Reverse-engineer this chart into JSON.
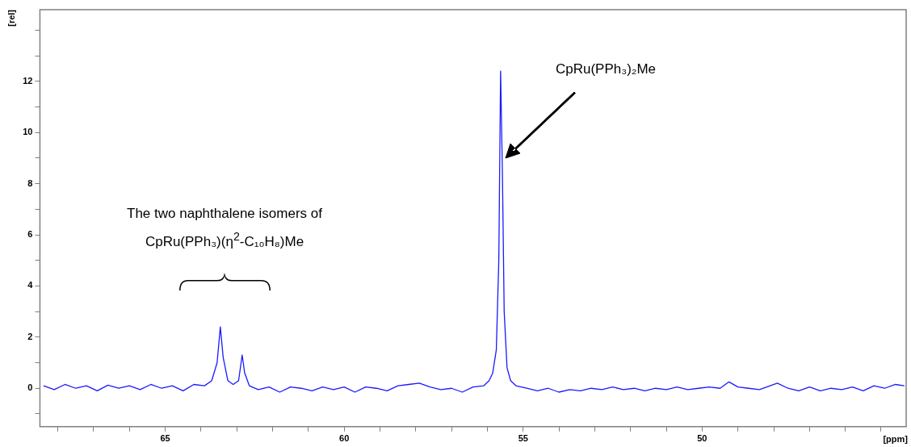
{
  "chart_data": {
    "type": "line",
    "xlabel": "[ppm]",
    "ylabel": "[rel]",
    "x": [
      68.4,
      68.1,
      67.8,
      67.5,
      67.2,
      66.9,
      66.6,
      66.3,
      66.0,
      65.7,
      65.4,
      65.1,
      64.8,
      64.5,
      64.2,
      63.9,
      63.7,
      63.55,
      63.46,
      63.38,
      63.25,
      63.1,
      62.95,
      62.85,
      62.78,
      62.65,
      62.4,
      62.1,
      61.8,
      61.5,
      61.2,
      60.9,
      60.6,
      60.3,
      60.0,
      59.7,
      59.4,
      59.1,
      58.8,
      58.5,
      58.2,
      57.9,
      57.6,
      57.3,
      57.0,
      56.7,
      56.4,
      56.1,
      55.95,
      55.85,
      55.75,
      55.68,
      55.63,
      55.58,
      55.53,
      55.45,
      55.35,
      55.2,
      54.9,
      54.6,
      54.3,
      54.0,
      53.7,
      53.4,
      53.1,
      52.8,
      52.5,
      52.2,
      51.9,
      51.6,
      51.3,
      51.0,
      50.7,
      50.4,
      50.1,
      49.8,
      49.5,
      49.25,
      49.0,
      48.7,
      48.4,
      48.1,
      47.9,
      47.6,
      47.3,
      47.0,
      46.7,
      46.4,
      46.1,
      45.8,
      45.5,
      45.2,
      44.9,
      44.6,
      44.35
    ],
    "series": [
      {
        "color": "#1a1aff",
        "values": [
          0.1,
          -0.05,
          0.15,
          0.0,
          0.1,
          -0.1,
          0.12,
          0.0,
          0.1,
          -0.05,
          0.15,
          0.0,
          0.1,
          -0.1,
          0.15,
          0.1,
          0.3,
          1.0,
          2.4,
          1.2,
          0.3,
          0.15,
          0.3,
          1.3,
          0.6,
          0.1,
          -0.05,
          0.05,
          -0.15,
          0.05,
          0.0,
          -0.1,
          0.05,
          -0.05,
          0.05,
          -0.15,
          0.05,
          0.0,
          -0.1,
          0.1,
          0.15,
          0.2,
          0.05,
          -0.05,
          0.0,
          -0.15,
          0.05,
          0.1,
          0.3,
          0.6,
          1.5,
          5.0,
          12.4,
          8.5,
          3.0,
          0.8,
          0.3,
          0.1,
          0.0,
          -0.1,
          0.0,
          -0.15,
          -0.05,
          -0.1,
          0.0,
          -0.05,
          0.05,
          -0.05,
          0.0,
          -0.1,
          0.0,
          -0.05,
          0.05,
          -0.05,
          0.0,
          0.05,
          0.0,
          0.25,
          0.05,
          0.0,
          -0.05,
          0.1,
          0.2,
          0.0,
          -0.1,
          0.05,
          -0.1,
          0.0,
          -0.05,
          0.05,
          -0.1,
          0.1,
          0.0,
          0.15,
          0.1
        ]
      }
    ],
    "xlim": [
      68.5,
      44.3
    ],
    "xticks": [
      {
        "value": 68,
        "label": null
      },
      {
        "value": 67,
        "label": null
      },
      {
        "value": 66,
        "label": null
      },
      65,
      {
        "value": 64,
        "label": null
      },
      {
        "value": 63,
        "label": null
      },
      {
        "value": 62,
        "label": null
      },
      {
        "value": 61,
        "label": null
      },
      60,
      {
        "value": 59,
        "label": null
      },
      {
        "value": 58,
        "label": null
      },
      {
        "value": 57,
        "label": null
      },
      {
        "value": 56,
        "label": null
      },
      55,
      {
        "value": 54,
        "label": null
      },
      {
        "value": 53,
        "label": null
      },
      {
        "value": 52,
        "label": null
      },
      {
        "value": 51,
        "label": null
      },
      50,
      {
        "value": 49,
        "label": null
      },
      {
        "value": 48,
        "label": null
      },
      {
        "value": 47,
        "label": null
      },
      {
        "value": 46,
        "label": null
      },
      {
        "value": 45,
        "label": null
      }
    ],
    "ylim": [
      -1.5,
      14.8
    ],
    "yticks": [
      {
        "value": -1,
        "label": null
      },
      0,
      {
        "value": 1,
        "label": null
      },
      2,
      {
        "value": 3,
        "label": null
      },
      4,
      {
        "value": 5,
        "label": null
      },
      6,
      {
        "value": 7,
        "label": null
      },
      8,
      {
        "value": 9,
        "label": null
      },
      10,
      {
        "value": 11,
        "label": null
      },
      12,
      {
        "value": 13,
        "label": null
      },
      {
        "value": 14,
        "label": null
      }
    ],
    "annotations": [
      "The two naphthalene isomers of CpRu(PPh₃)(η$^{2}$-C₁₀H₈)Me",
      "CpRu(PPh₃)₂Me"
    ],
    "grid": false,
    "legend": false,
    "marker": "none",
    "line_style": "solid"
  }
}
